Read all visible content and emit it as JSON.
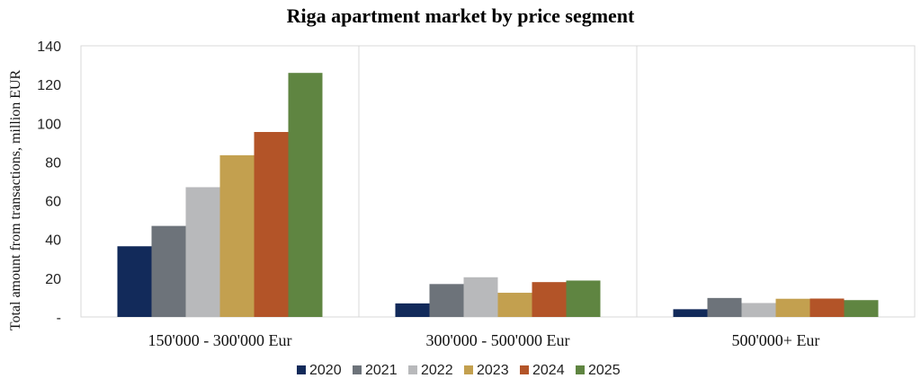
{
  "chart_data": {
    "type": "bar",
    "title": "Riga apartment market by price segment",
    "xlabel": "",
    "ylabel": "Total amount from transactions, million EUR",
    "ylim": [
      0,
      140
    ],
    "yticks": [
      "-",
      "20",
      "40",
      "60",
      "80",
      "100",
      "120",
      "140"
    ],
    "categories": [
      "150'000 - 300'000 Eur",
      "300'000 - 500'000 Eur",
      "500'000+ Eur"
    ],
    "grid": "vertical separators between categories",
    "legend_position": "bottom",
    "series": [
      {
        "name": "2020",
        "color": "#122a5a",
        "values": [
          36.5,
          7,
          4
        ]
      },
      {
        "name": "2021",
        "color": "#6d737a",
        "values": [
          47,
          17,
          9.8
        ]
      },
      {
        "name": "2022",
        "color": "#b8b9bb",
        "values": [
          67,
          20.5,
          7.2
        ]
      },
      {
        "name": "2023",
        "color": "#c3a04f",
        "values": [
          83.5,
          12.5,
          9.4
        ]
      },
      {
        "name": "2024",
        "color": "#b35428",
        "values": [
          95.5,
          18,
          9.5
        ]
      },
      {
        "name": "2025",
        "color": "#5f8541",
        "values": [
          126,
          18.8,
          8.7
        ]
      }
    ]
  }
}
